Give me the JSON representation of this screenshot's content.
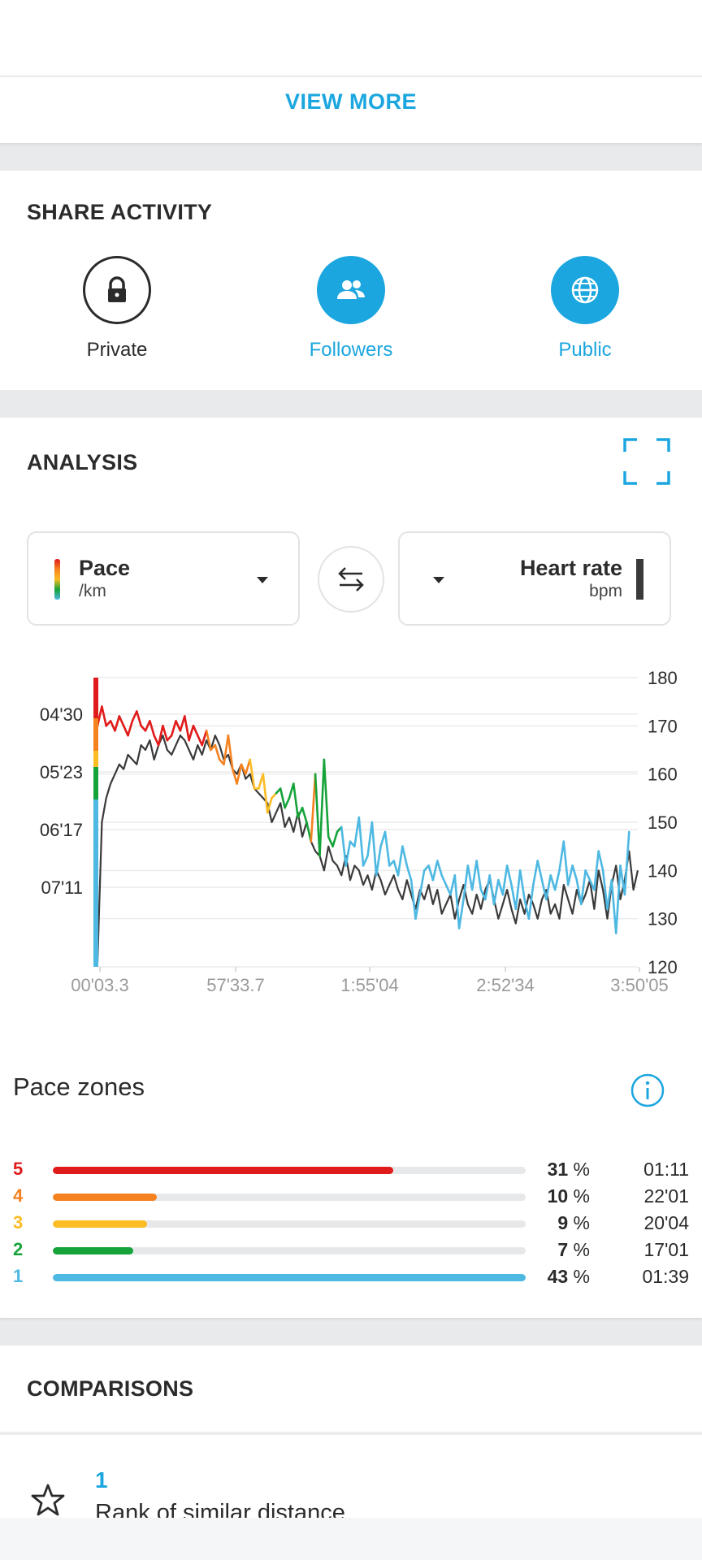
{
  "top": {
    "view_more": "VIEW MORE"
  },
  "share": {
    "title": "SHARE ACTIVITY",
    "options": [
      {
        "label": "Private",
        "icon": "lock-icon",
        "selected": false
      },
      {
        "label": "Followers",
        "icon": "people-icon",
        "selected": true
      },
      {
        "label": "Public",
        "icon": "globe-icon",
        "selected": true
      }
    ]
  },
  "analysis": {
    "title": "ANALYSIS",
    "left_metric": {
      "name": "Pace",
      "unit": "/km"
    },
    "right_metric": {
      "name": "Heart rate",
      "unit": "bpm"
    }
  },
  "chart_data": {
    "type": "line",
    "x_tick_labels": [
      "00'03.3",
      "57'33.7",
      "1:55'04",
      "2:52'34",
      "3:50'05"
    ],
    "y_left_ticks": [
      "04'30",
      "05'23",
      "06'17",
      "07'11"
    ],
    "y_right_ticks": [
      180,
      170,
      160,
      150,
      140,
      130,
      120
    ],
    "ylim_right": [
      120,
      180
    ],
    "series": [
      {
        "metric": "pace",
        "color_by_zone": true,
        "values": [
          170,
          174,
          170,
          171,
          169,
          172,
          170,
          168,
          171,
          173,
          170,
          169,
          171,
          168,
          166,
          170,
          167,
          168,
          171,
          169,
          172,
          167,
          170,
          168,
          166,
          169,
          165,
          166,
          163,
          162,
          168,
          161,
          158,
          162,
          160,
          163,
          157,
          157,
          160,
          152,
          155,
          156,
          157,
          153,
          155,
          158,
          151,
          153,
          150,
          146,
          160,
          143,
          163,
          147,
          145,
          148,
          149,
          141,
          146,
          145,
          151,
          141,
          143,
          150,
          139,
          145,
          148,
          141,
          142,
          139,
          145,
          141,
          138,
          130,
          135,
          140,
          141,
          138,
          142,
          139,
          137,
          135,
          139,
          128,
          134,
          141,
          136,
          142,
          136,
          134,
          139,
          133,
          138,
          135,
          141,
          137,
          132,
          140,
          134,
          130,
          137,
          142,
          138,
          134,
          139,
          136,
          140,
          146,
          137,
          141,
          138,
          133,
          140,
          138,
          136,
          144,
          140,
          132,
          138,
          127,
          141,
          135,
          148,
          139,
          142
        ],
        "colors": [
          "red",
          "red",
          "red",
          "red",
          "red",
          "red",
          "red",
          "red",
          "red",
          "red",
          "red",
          "red",
          "red",
          "red",
          "red",
          "red",
          "red",
          "red",
          "red",
          "red",
          "red",
          "red",
          "red",
          "red",
          "red",
          "red",
          "orange",
          "orange",
          "orange",
          "orange",
          "orange",
          "orange",
          "orange",
          "orange",
          "orange",
          "orange",
          "yellow",
          "yellow",
          "yellow",
          "yellow",
          "yellow",
          "yellow",
          "green",
          "green",
          "green",
          "green",
          "green",
          "green",
          "green",
          "green",
          "orange",
          "green",
          "green",
          "green",
          "green",
          "green",
          "green",
          "blue",
          "blue",
          "blue",
          "blue",
          "blue",
          "blue",
          "blue",
          "blue",
          "blue",
          "blue",
          "blue",
          "blue",
          "blue",
          "blue",
          "blue",
          "blue",
          "blue",
          "blue",
          "blue",
          "blue",
          "blue",
          "blue",
          "blue",
          "blue",
          "blue",
          "blue",
          "blue",
          "blue",
          "blue",
          "blue",
          "blue",
          "blue",
          "blue",
          "blue",
          "blue",
          "blue",
          "blue",
          "blue",
          "blue",
          "blue",
          "blue",
          "blue",
          "blue",
          "blue",
          "blue",
          "blue",
          "blue",
          "blue",
          "blue",
          "blue",
          "blue",
          "blue",
          "blue",
          "blue",
          "blue",
          "blue",
          "blue",
          "blue",
          "blue",
          "blue",
          "blue",
          "blue",
          "blue",
          "blue",
          "blue",
          "blue"
        ]
      },
      {
        "metric": "heart_rate",
        "color": "#3a3a3a",
        "values": [
          121,
          150,
          155,
          158,
          160,
          162,
          161,
          164,
          163,
          162,
          166,
          165,
          167,
          163,
          166,
          168,
          165,
          164,
          166,
          168,
          167,
          165,
          163,
          166,
          164,
          167,
          165,
          168,
          166,
          163,
          164,
          161,
          160,
          162,
          159,
          160,
          157,
          156,
          155,
          154,
          150,
          152,
          154,
          149,
          151,
          148,
          152,
          147,
          150,
          146,
          144,
          143,
          140,
          145,
          142,
          141,
          139,
          143,
          138,
          141,
          140,
          137,
          139,
          136,
          140,
          138,
          135,
          137,
          139,
          136,
          134,
          138,
          135,
          132,
          136,
          134,
          137,
          133,
          136,
          131,
          133,
          135,
          130,
          134,
          137,
          133,
          131,
          135,
          132,
          136,
          138,
          134,
          130,
          133,
          136,
          132,
          129,
          134,
          131,
          135,
          133,
          130,
          134,
          136,
          131,
          133,
          130,
          137,
          134,
          131,
          136,
          133,
          135,
          138,
          132,
          140,
          136,
          130,
          137,
          141,
          134,
          138,
          144,
          136,
          140
        ]
      }
    ]
  },
  "zones": {
    "title": "Pace zones",
    "items": [
      {
        "num": "5",
        "color": "#e01b1b",
        "fraction": 0.72,
        "pct": "31",
        "pct_sign": "%",
        "time": "01:11"
      },
      {
        "num": "4",
        "color": "#f5821f",
        "fraction": 0.22,
        "pct": "10",
        "pct_sign": "%",
        "time": "22'01"
      },
      {
        "num": "3",
        "color": "#fbbc24",
        "fraction": 0.2,
        "pct": "9",
        "pct_sign": "%",
        "time": "20'04"
      },
      {
        "num": "2",
        "color": "#16a33a",
        "fraction": 0.17,
        "pct": "7",
        "pct_sign": "%",
        "time": "17'01"
      },
      {
        "num": "1",
        "color": "#4db8e2",
        "fraction": 1.0,
        "pct": "43",
        "pct_sign": "%",
        "time": "01:39"
      }
    ]
  },
  "comparisons": {
    "title": "COMPARISONS",
    "rank_value": "1",
    "rank_label": "Rank of similar distance"
  },
  "colors": {
    "accent": "#1ba6df",
    "zone5": "#e01b1b",
    "zone4": "#f5821f",
    "zone3": "#fbbc24",
    "zone2": "#16a33a",
    "zone1": "#4db8e2"
  }
}
